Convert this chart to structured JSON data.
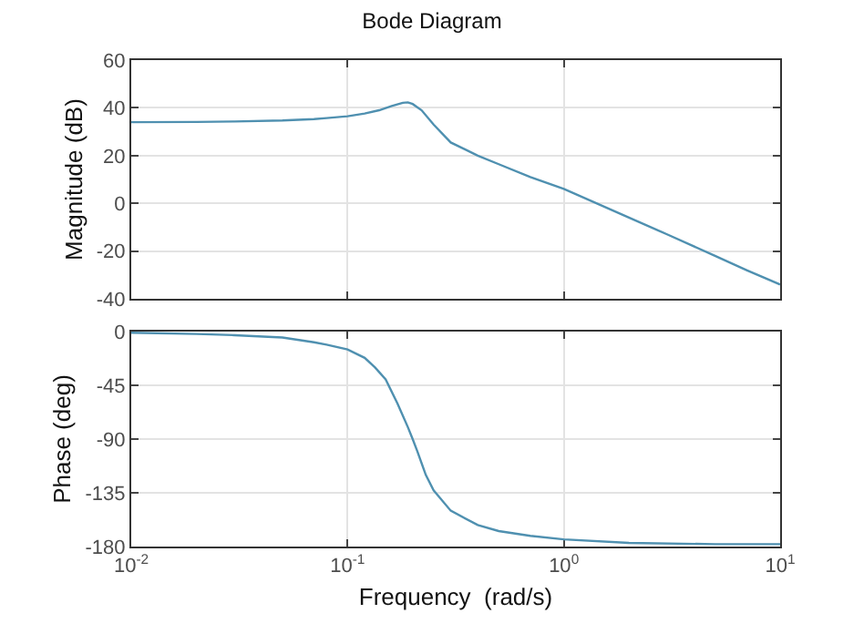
{
  "chart_data": [
    {
      "type": "line",
      "title": "Bode Diagram",
      "ylabel": "Magnitude (dB)",
      "log": "x",
      "grid": true,
      "tick_labels": "y",
      "xlim": [
        0.01,
        10
      ],
      "xticks": [
        0.01,
        0.1,
        1,
        10
      ],
      "ylim": [
        -40,
        60
      ],
      "yticks": [
        -40,
        -20,
        0,
        20,
        40,
        60
      ],
      "x": [
        0.01,
        0.02,
        0.03,
        0.05,
        0.07,
        0.08,
        0.1,
        0.12,
        0.14,
        0.16,
        0.18,
        0.19,
        0.2,
        0.22,
        0.25,
        0.3,
        0.4,
        0.5,
        0.7,
        1,
        2,
        3,
        5,
        7,
        10
      ],
      "series": [
        {
          "color": "#4f90b0",
          "values": [
            34,
            34.1,
            34.3,
            34.7,
            35.3,
            35.7,
            36.5,
            37.6,
            39,
            40.8,
            42.1,
            42.3,
            41.6,
            39,
            33,
            25.5,
            20,
            16.4,
            11,
            6,
            -6,
            -13,
            -22,
            -28,
            -34
          ]
        }
      ]
    },
    {
      "type": "line",
      "xlabel": "Frequency  (rad/s)",
      "ylabel": "Phase (deg)",
      "log": "x",
      "grid": true,
      "xlim": [
        0.01,
        10
      ],
      "xticks": [
        {
          "value": 0.01,
          "label": "10$^{-2}$"
        },
        {
          "value": 0.1,
          "label": "10$^{-1}$"
        },
        {
          "value": 1,
          "label": "10$^{0}$"
        },
        {
          "value": 10,
          "label": "10$^{1}$"
        }
      ],
      "ylim": [
        -180,
        0
      ],
      "yticks": [
        -180,
        -135,
        -90,
        -45,
        0
      ],
      "x": [
        0.01,
        0.02,
        0.03,
        0.05,
        0.07,
        0.08,
        0.1,
        0.12,
        0.134,
        0.15,
        0.17,
        0.19,
        0.2,
        0.21,
        0.23,
        0.25,
        0.3,
        0.4,
        0.5,
        0.7,
        1,
        2,
        5,
        10
      ],
      "series": [
        {
          "color": "#4f90b0",
          "values": [
            -1,
            -2,
            -3,
            -5,
            -9,
            -11,
            -15,
            -22,
            -30,
            -40,
            -60,
            -80,
            -90,
            -100,
            -120,
            -133,
            -150,
            -162,
            -167,
            -171,
            -174,
            -177,
            -178,
            -178
          ]
        }
      ]
    }
  ]
}
